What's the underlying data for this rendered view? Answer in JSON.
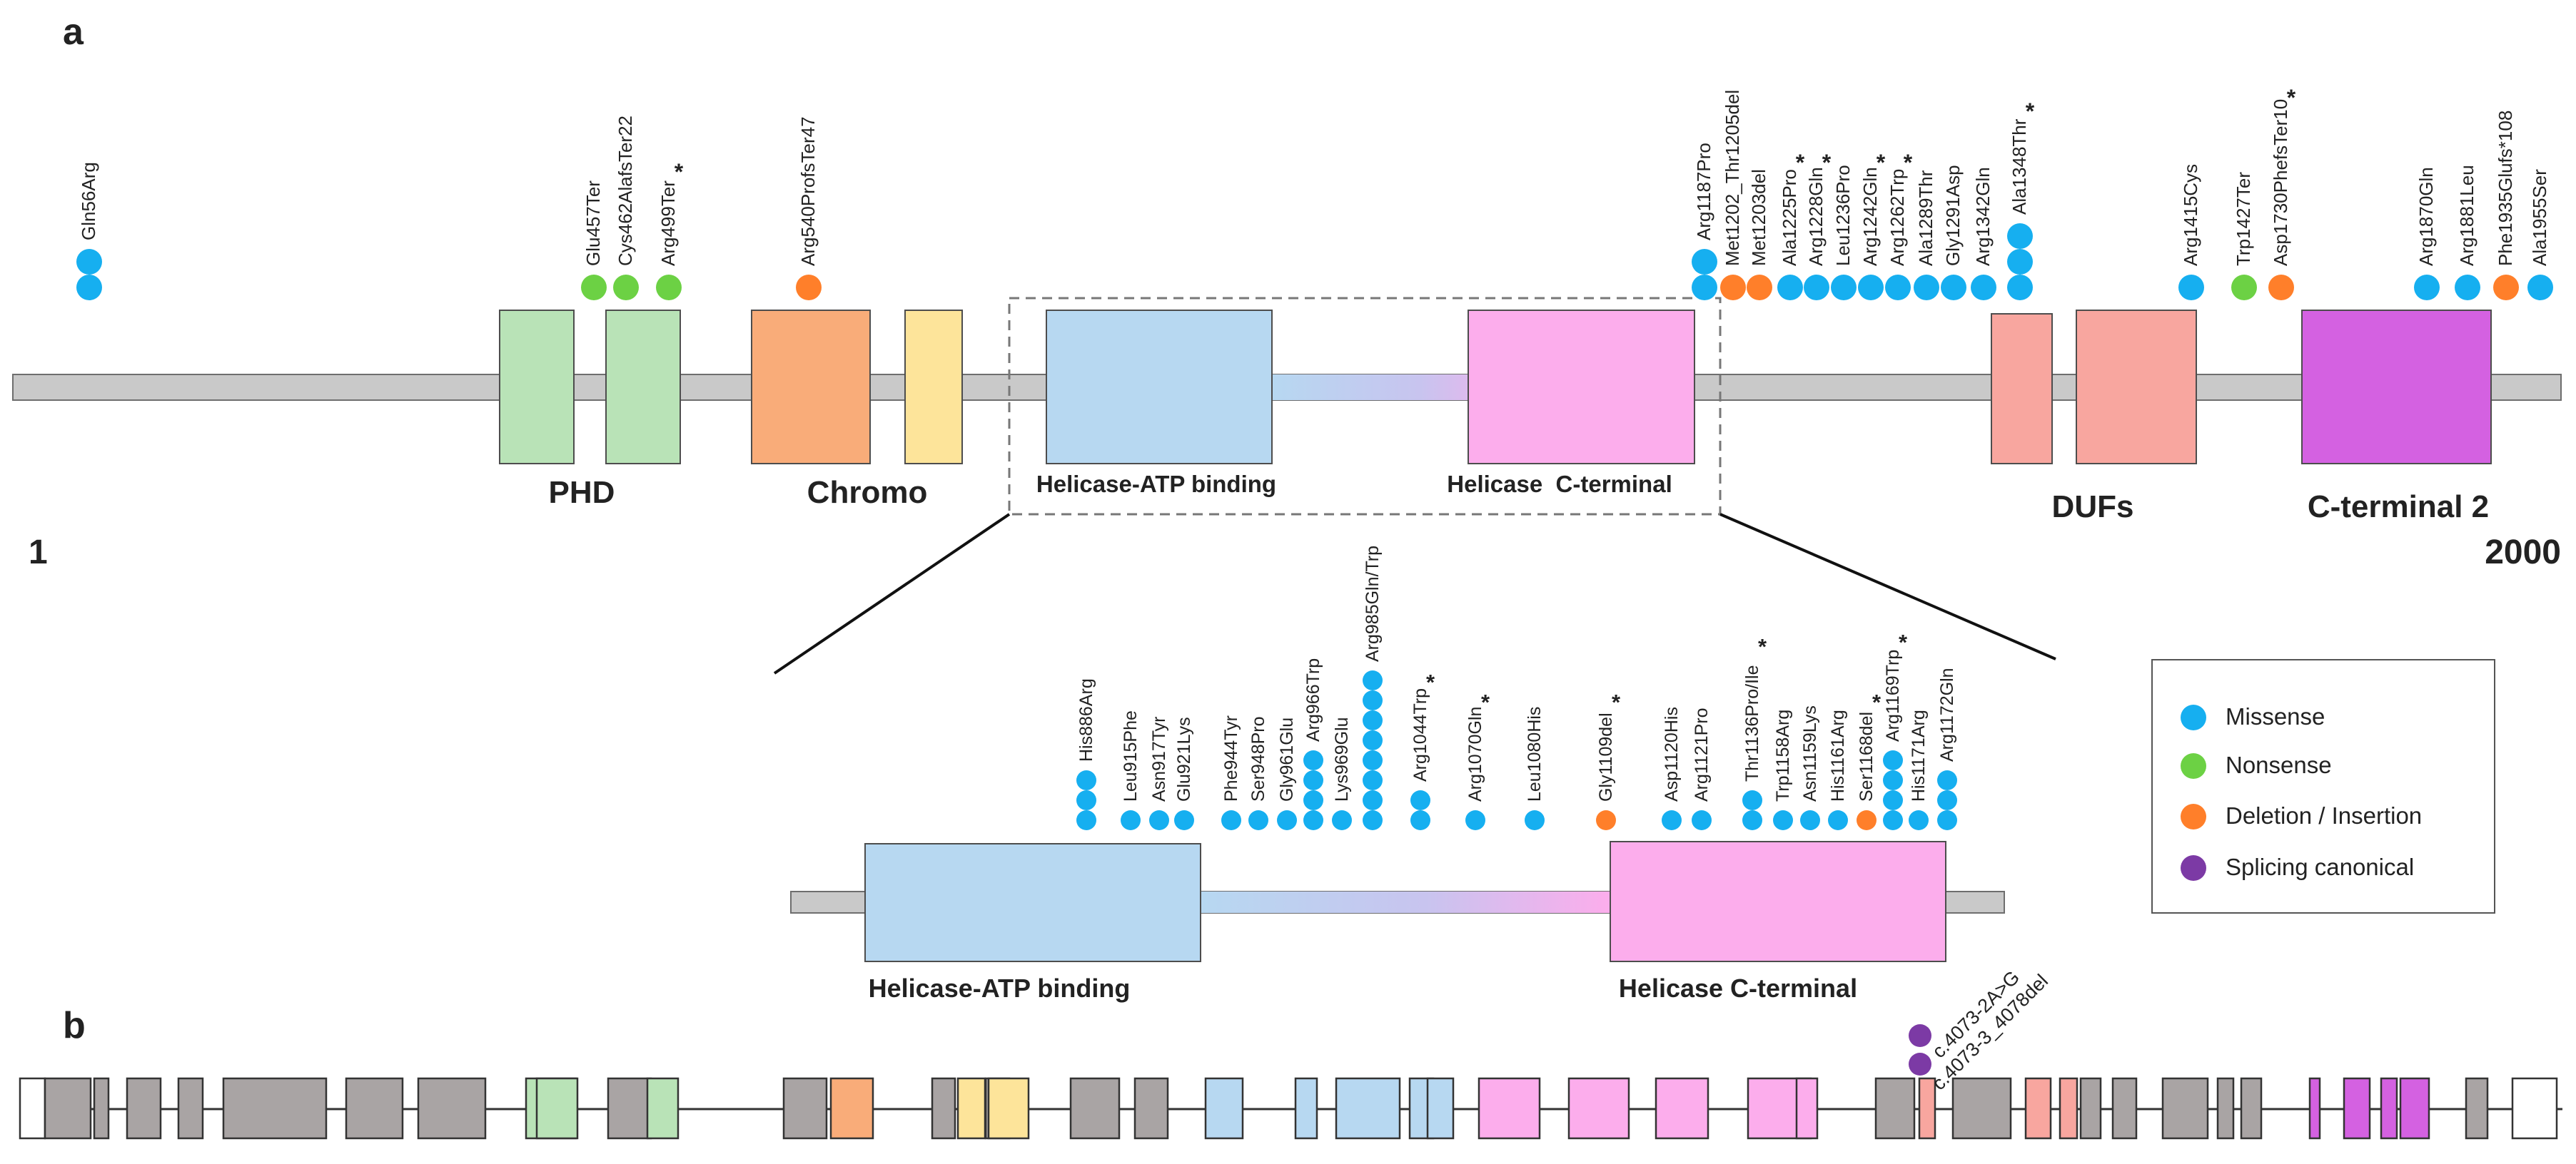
{
  "panels": {
    "a": "a",
    "b": "b"
  },
  "protein": {
    "start_label": "1",
    "end_label": "2000",
    "domains": [
      {
        "key": "phd",
        "label": "PHD",
        "color": "#b9e3b7"
      },
      {
        "key": "chromo",
        "label": "Chromo",
        "color": "#f9ac79"
      },
      {
        "key": "chromo2",
        "label": "",
        "color": "#fde49a"
      },
      {
        "key": "hatp",
        "label": "Helicase-ATP binding",
        "color": "#b7d8f1"
      },
      {
        "key": "hct",
        "label": "Helicase  C-terminal",
        "color": "#fcadec"
      },
      {
        "key": "dufs",
        "label": "DUFs",
        "color": "#f8a69f"
      },
      {
        "key": "ct2",
        "label": "C-terminal 2",
        "color": "#d461e1"
      }
    ]
  },
  "variants_top": [
    {
      "label": "Gln56Arg",
      "type": "missense",
      "count": 2,
      "star": false
    },
    {
      "label": "Glu457Ter",
      "type": "nonsense",
      "count": 1,
      "star": false
    },
    {
      "label": "Cys462AlafsTer22",
      "type": "nonsense",
      "count": 1,
      "star": false
    },
    {
      "label": "Arg499Ter",
      "type": "nonsense",
      "count": 1,
      "star": true
    },
    {
      "label": "Arg540ProfsTer47",
      "type": "deletion",
      "count": 1,
      "star": false
    },
    {
      "label": "Arg1187Pro",
      "type": "missense",
      "count": 2,
      "star": false
    },
    {
      "label": "Met1202_Thr1205del",
      "type": "deletion",
      "count": 1,
      "star": false
    },
    {
      "label": "Met1203del",
      "type": "deletion",
      "count": 1,
      "star": false
    },
    {
      "label": "Ala1225Pro",
      "type": "missense",
      "count": 1,
      "star": true
    },
    {
      "label": "Arg1228Gln",
      "type": "missense",
      "count": 1,
      "star": true
    },
    {
      "label": "Leu1236Pro",
      "type": "missense",
      "count": 1,
      "star": false
    },
    {
      "label": "Arg1242Gln",
      "type": "missense",
      "count": 1,
      "star": true
    },
    {
      "label": "Arg1262Trp",
      "type": "missense",
      "count": 1,
      "star": true
    },
    {
      "label": "Ala1289Thr",
      "type": "missense",
      "count": 1,
      "star": false
    },
    {
      "label": "Gly1291Asp",
      "type": "missense",
      "count": 1,
      "star": false
    },
    {
      "label": "Arg1342Gln",
      "type": "missense",
      "count": 1,
      "star": false
    },
    {
      "label": "Ala1348Thr",
      "type": "missense",
      "count": 3,
      "star": true
    },
    {
      "label": "Arg1415Cys",
      "type": "missense",
      "count": 1,
      "star": false
    },
    {
      "label": "Trp1427Ter",
      "type": "nonsense",
      "count": 1,
      "star": false
    },
    {
      "label": "Asp1730PhefsTer10",
      "type": "deletion",
      "count": 1,
      "star": true
    },
    {
      "label": "Arg1870Gln",
      "type": "missense",
      "count": 1,
      "star": false
    },
    {
      "label": "Arg1881Leu",
      "type": "missense",
      "count": 1,
      "star": false
    },
    {
      "label": "Phe1935Glufs*108",
      "type": "deletion",
      "count": 1,
      "star": false
    },
    {
      "label": "Ala1955Ser",
      "type": "missense",
      "count": 1,
      "star": false
    }
  ],
  "inset": {
    "left_label": "Helicase-ATP binding",
    "right_label": "Helicase C-terminal",
    "variants": [
      {
        "label": "His886Arg",
        "type": "missense",
        "count": 3,
        "star": false
      },
      {
        "label": "Leu915Phe",
        "type": "missense",
        "count": 1,
        "star": false
      },
      {
        "label": "Asn917Tyr",
        "type": "missense",
        "count": 1,
        "star": false
      },
      {
        "label": "Glu921Lys",
        "type": "missense",
        "count": 1,
        "star": false
      },
      {
        "label": "Phe944Tyr",
        "type": "missense",
        "count": 1,
        "star": false
      },
      {
        "label": "Ser948Pro",
        "type": "missense",
        "count": 1,
        "star": false
      },
      {
        "label": "Gly961Glu",
        "type": "missense",
        "count": 1,
        "star": false
      },
      {
        "label": "Arg966Trp",
        "type": "missense",
        "count": 4,
        "star": false
      },
      {
        "label": "Lys969Glu",
        "type": "missense",
        "count": 1,
        "star": false
      },
      {
        "label": "Arg985Gln/Trp",
        "type": "missense",
        "count": 8,
        "star": false
      },
      {
        "label": "Arg1044Trp",
        "type": "missense",
        "count": 2,
        "star": true
      },
      {
        "label": "Arg1070Gln",
        "type": "missense",
        "count": 1,
        "star": true
      },
      {
        "label": "Leu1080His",
        "type": "missense",
        "count": 1,
        "star": false
      },
      {
        "label": "Gly1109del",
        "type": "deletion",
        "count": 1,
        "star": true
      },
      {
        "label": "Asp1120His",
        "type": "missense",
        "count": 1,
        "star": false
      },
      {
        "label": "Arg1121Pro",
        "type": "missense",
        "count": 1,
        "star": false
      },
      {
        "label": "Thr1136Pro/Ile",
        "type": "missense",
        "count": 2,
        "star": true
      },
      {
        "label": "Trp1158Arg",
        "type": "missense",
        "count": 1,
        "star": false
      },
      {
        "label": "Asn1159Lys",
        "type": "missense",
        "count": 1,
        "star": false
      },
      {
        "label": "His1161Arg",
        "type": "missense",
        "count": 1,
        "star": false
      },
      {
        "label": "Ser1168del",
        "type": "deletion",
        "count": 1,
        "star": true
      },
      {
        "label": "Arg1169Trp",
        "type": "missense",
        "count": 4,
        "star": true
      },
      {
        "label": "His1171Arg",
        "type": "missense",
        "count": 1,
        "star": false
      },
      {
        "label": "Arg1172Gln",
        "type": "missense",
        "count": 3,
        "star": false
      }
    ]
  },
  "star_symbol": "*",
  "legend": [
    {
      "label": "Missense",
      "color": "#16aff0",
      "key": "missense"
    },
    {
      "label": "Nonsense",
      "color": "#6cd144",
      "key": "nonsense"
    },
    {
      "label": "Deletion / Insertion",
      "color": "#ff7f2a",
      "key": "deletion"
    },
    {
      "label": "Splicing canonical",
      "color": "#7c3aa5",
      "key": "splicing"
    }
  ],
  "gene": {
    "splice_variants": [
      {
        "label": "c.4073-2A>G",
        "type": "splicing"
      },
      {
        "label": "c.4073-3_4078del",
        "type": "splicing"
      }
    ],
    "exons": [
      {
        "fill": "#ffffff"
      },
      {
        "fill": "#a9a4a4"
      },
      {
        "fill": "#a9a4a4"
      },
      {
        "fill": "#a9a4a4"
      },
      {
        "fill": "#a9a4a4"
      },
      {
        "fill": "#a9a4a4"
      },
      {
        "fill": "#a9a4a4"
      },
      {
        "fill": "#a9a4a4"
      },
      {
        "fill": "green"
      },
      {
        "fill": "#a9a4a4"
      },
      {
        "fill": "green"
      },
      {
        "fill": "#a9a4a4"
      },
      {
        "fill": "orange"
      },
      {
        "fill": "#a9a4a4"
      },
      {
        "fill": "yellow"
      },
      {
        "fill": "#a9a4a4"
      },
      {
        "fill": "yellow"
      },
      {
        "fill": "#a9a4a4"
      },
      {
        "fill": "#a9a4a4"
      },
      {
        "fill": "blue"
      },
      {
        "fill": "blue"
      },
      {
        "fill": "blue"
      },
      {
        "fill": "blue"
      },
      {
        "fill": "blue"
      },
      {
        "fill": "pink"
      },
      {
        "fill": "pink"
      },
      {
        "fill": "pink"
      },
      {
        "fill": "pink"
      },
      {
        "fill": "pink"
      },
      {
        "fill": "#a9a4a4"
      },
      {
        "fill": "salmon"
      },
      {
        "fill": "#a9a4a4"
      },
      {
        "fill": "salmon"
      },
      {
        "fill": "salmon"
      },
      {
        "fill": "#a9a4a4"
      },
      {
        "fill": "#a9a4a4"
      },
      {
        "fill": "#a9a4a4"
      },
      {
        "fill": "#a9a4a4"
      },
      {
        "fill": "#a9a4a4"
      },
      {
        "fill": "purple"
      },
      {
        "fill": "purple"
      },
      {
        "fill": "purple"
      },
      {
        "fill": "purple"
      },
      {
        "fill": "#a9a4a4"
      },
      {
        "fill": "#ffffff"
      }
    ]
  }
}
